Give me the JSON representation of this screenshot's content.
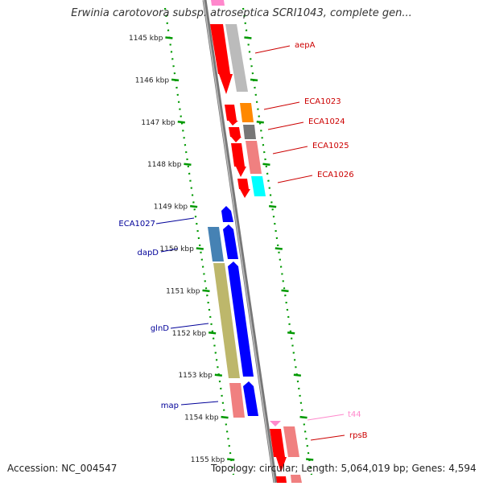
{
  "title": "Erwinia carotovora subsp. atroseptica SCRI1043, complete gen...",
  "footer": {
    "accession": "Accession: NC_004547",
    "summary": "Topology: circular; Length: 5,064,019 bp; Genes: 4,594"
  },
  "ticks": [
    {
      "label": "1145 kbp",
      "kbp": 1145
    },
    {
      "label": "1146 kbp",
      "kbp": 1146
    },
    {
      "label": "1147 kbp",
      "kbp": 1147
    },
    {
      "label": "1148 kbp",
      "kbp": 1148
    },
    {
      "label": "1149 kbp",
      "kbp": 1149
    },
    {
      "label": "1150 kbp",
      "kbp": 1150
    },
    {
      "label": "1151 kbp",
      "kbp": 1151
    },
    {
      "label": "1152 kbp",
      "kbp": 1152
    },
    {
      "label": "1153 kbp",
      "kbp": 1153
    },
    {
      "label": "1154 kbp",
      "kbp": 1154
    },
    {
      "label": "1155 kbp",
      "kbp": 1155
    }
  ],
  "genes_forward": [
    {
      "label": "aepA",
      "start_kbp": 1144.6,
      "end_kbp": 1145.8
    },
    {
      "label": "ECA1023",
      "start_kbp": 1146.6,
      "end_kbp": 1147.1
    },
    {
      "label": "ECA1024",
      "start_kbp": 1147.1,
      "end_kbp": 1147.4
    },
    {
      "label": "ECA1025",
      "start_kbp": 1147.45,
      "end_kbp": 1148.25
    },
    {
      "label": "ECA1026",
      "start_kbp": 1148.35,
      "end_kbp": 1148.8
    },
    {
      "label": "t44",
      "start_kbp": 1154.05,
      "end_kbp": 1154.2
    },
    {
      "label": "rpsB",
      "start_kbp": 1154.25,
      "end_kbp": 1155.0
    }
  ],
  "genes_reverse": [
    {
      "label": "ECA1027",
      "start_kbp": 1149.0,
      "end_kbp": 1149.35
    },
    {
      "label": "dapD",
      "start_kbp": 1149.5,
      "end_kbp": 1150.35
    },
    {
      "label": "glnD",
      "start_kbp": 1150.4,
      "end_kbp": 1152.85
    },
    {
      "label": "map",
      "start_kbp": 1153.2,
      "end_kbp": 1154.0
    }
  ],
  "colors": {
    "cds": "#ff0000",
    "cds_reverse": "#0000ff",
    "trna": "#ff88cc",
    "backbone": "#888888",
    "ticks": "#009900",
    "label_forward": "#cc0000",
    "label_reverse": "#000099",
    "cog": [
      "#bbbbbb",
      "#ff8800",
      "#777777",
      "#f08080",
      "#00ffff",
      "#4682b4",
      "#bdb76b",
      "#f08080"
    ]
  }
}
